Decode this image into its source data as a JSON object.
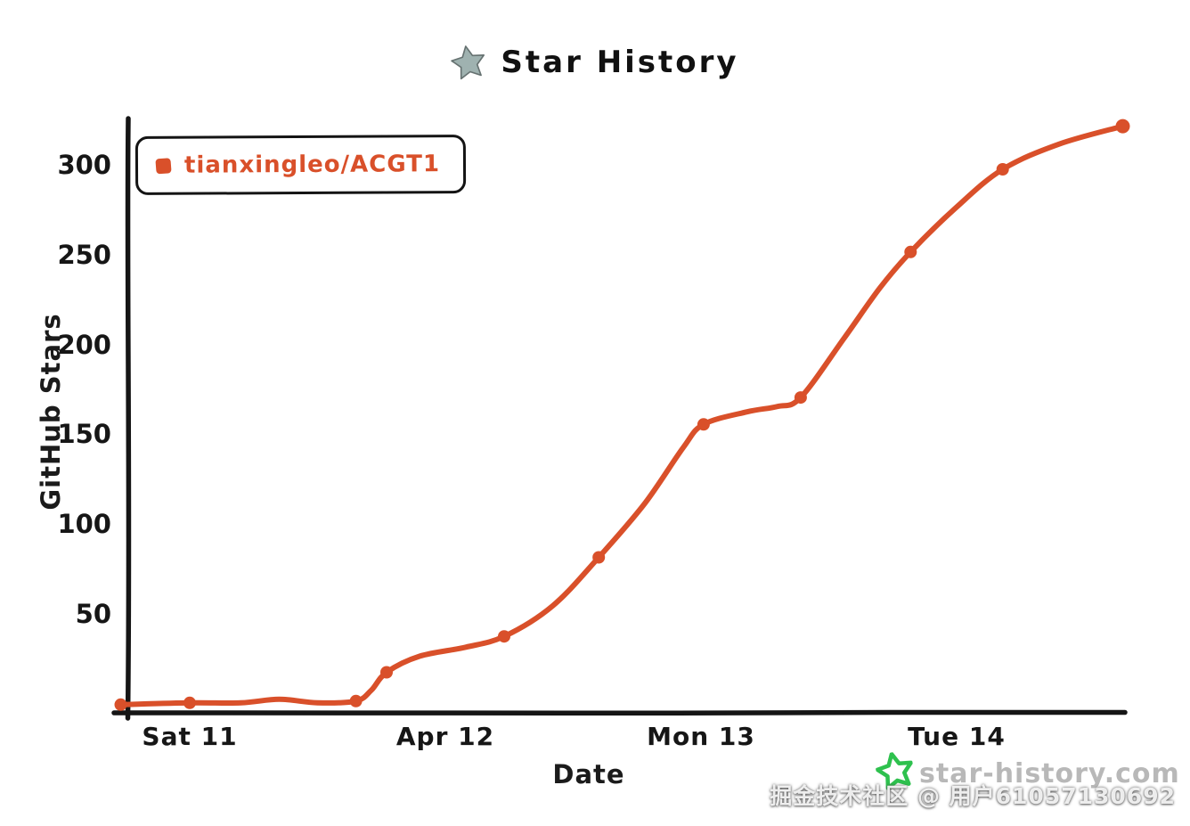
{
  "title": {
    "text": "Star History"
  },
  "legend": {
    "series": "tianxingleo/ACGT1"
  },
  "axes": {
    "y_label": "GitHub Stars",
    "x_label": "Date",
    "y_ticks": [
      50,
      100,
      150,
      200,
      250,
      300
    ],
    "x_tick_labels": [
      "Sat 11",
      "Apr 12",
      "Mon 13",
      "Tue 14"
    ]
  },
  "watermark": {
    "site": "star-history.com",
    "overlay": "掘金技术社区 @ 用户61057130692"
  },
  "colors": {
    "line": "#d9502a",
    "axis": "#151515",
    "green_star": "#2ec14e",
    "logo_star_fill": "#8fa5a3",
    "logo_star_stroke": "#4c5a59"
  },
  "chart_data": {
    "type": "line",
    "title": "Star History",
    "xlabel": "Date",
    "ylabel": "GitHub Stars",
    "x_tick_labels": [
      "Sat 11",
      "Apr 12",
      "Mon 13",
      "Tue 14"
    ],
    "y_ticks": [
      50,
      100,
      150,
      200,
      250,
      300
    ],
    "ylim": [
      0,
      330
    ],
    "grid": false,
    "legend_position": "top-left",
    "series": [
      {
        "name": "tianxingleo/ACGT1",
        "color": "#d9502a",
        "x_unit": "days relative to Sat 11 tick",
        "points": [
          {
            "day": -0.27,
            "stars": 0,
            "marker": true
          },
          {
            "day": 0.0,
            "stars": 1,
            "marker": true
          },
          {
            "day": 0.2,
            "stars": 1,
            "marker": false
          },
          {
            "day": 0.35,
            "stars": 3,
            "marker": false
          },
          {
            "day": 0.5,
            "stars": 1,
            "marker": false
          },
          {
            "day": 0.65,
            "stars": 2,
            "marker": true
          },
          {
            "day": 0.71,
            "stars": 8,
            "marker": false
          },
          {
            "day": 0.77,
            "stars": 18,
            "marker": true
          },
          {
            "day": 0.9,
            "stars": 27,
            "marker": false
          },
          {
            "day": 1.08,
            "stars": 32,
            "marker": false
          },
          {
            "day": 1.23,
            "stars": 38,
            "marker": true
          },
          {
            "day": 1.42,
            "stars": 55,
            "marker": false
          },
          {
            "day": 1.6,
            "stars": 82,
            "marker": true
          },
          {
            "day": 1.78,
            "stars": 112,
            "marker": false
          },
          {
            "day": 1.93,
            "stars": 143,
            "marker": false
          },
          {
            "day": 2.01,
            "stars": 156,
            "marker": true
          },
          {
            "day": 2.18,
            "stars": 163,
            "marker": false
          },
          {
            "day": 2.3,
            "stars": 166,
            "marker": false
          },
          {
            "day": 2.39,
            "stars": 171,
            "marker": true
          },
          {
            "day": 2.56,
            "stars": 204,
            "marker": false
          },
          {
            "day": 2.7,
            "stars": 232,
            "marker": false
          },
          {
            "day": 2.82,
            "stars": 252,
            "marker": true
          },
          {
            "day": 3.0,
            "stars": 277,
            "marker": false
          },
          {
            "day": 3.18,
            "stars": 298,
            "marker": true
          },
          {
            "day": 3.4,
            "stars": 312,
            "marker": false
          },
          {
            "day": 3.65,
            "stars": 322,
            "marker": true
          }
        ]
      }
    ]
  }
}
